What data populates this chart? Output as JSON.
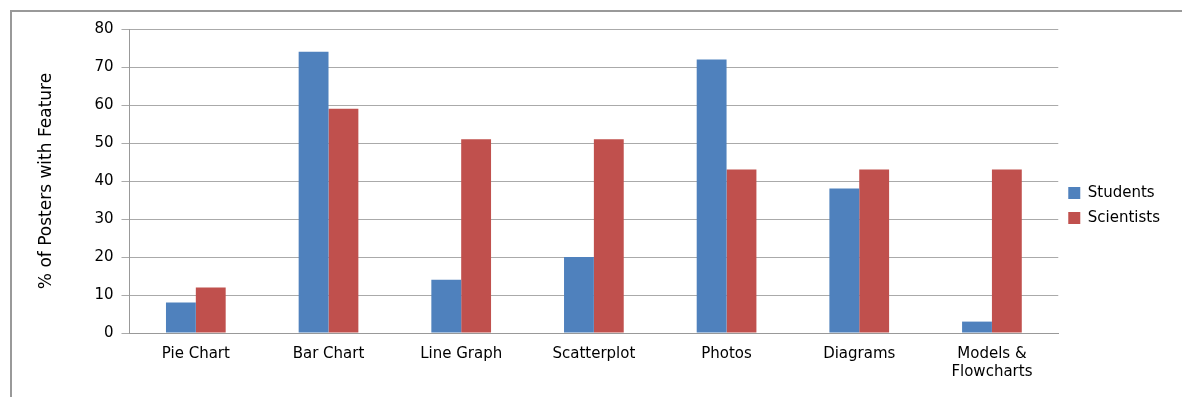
{
  "chart_data": {
    "type": "bar",
    "ylabel": "% of Posters with Feature",
    "categories": [
      "Pie Chart",
      "Bar Chart",
      "Line Graph",
      "Scatterplot",
      "Photos",
      "Diagrams",
      "Models & Flowcharts"
    ],
    "series": [
      {
        "name": "Students",
        "color": "#4f81bd",
        "values": [
          8,
          74,
          14,
          20,
          72,
          38,
          3
        ]
      },
      {
        "name": "Scientists",
        "color": "#c0504d",
        "values": [
          12,
          59,
          51,
          51,
          43,
          43,
          43
        ]
      }
    ],
    "ylim": [
      0,
      80
    ],
    "yticks": [
      0,
      10,
      20,
      30,
      40,
      50,
      60,
      70,
      80
    ],
    "grid": "y",
    "legend": "right"
  }
}
